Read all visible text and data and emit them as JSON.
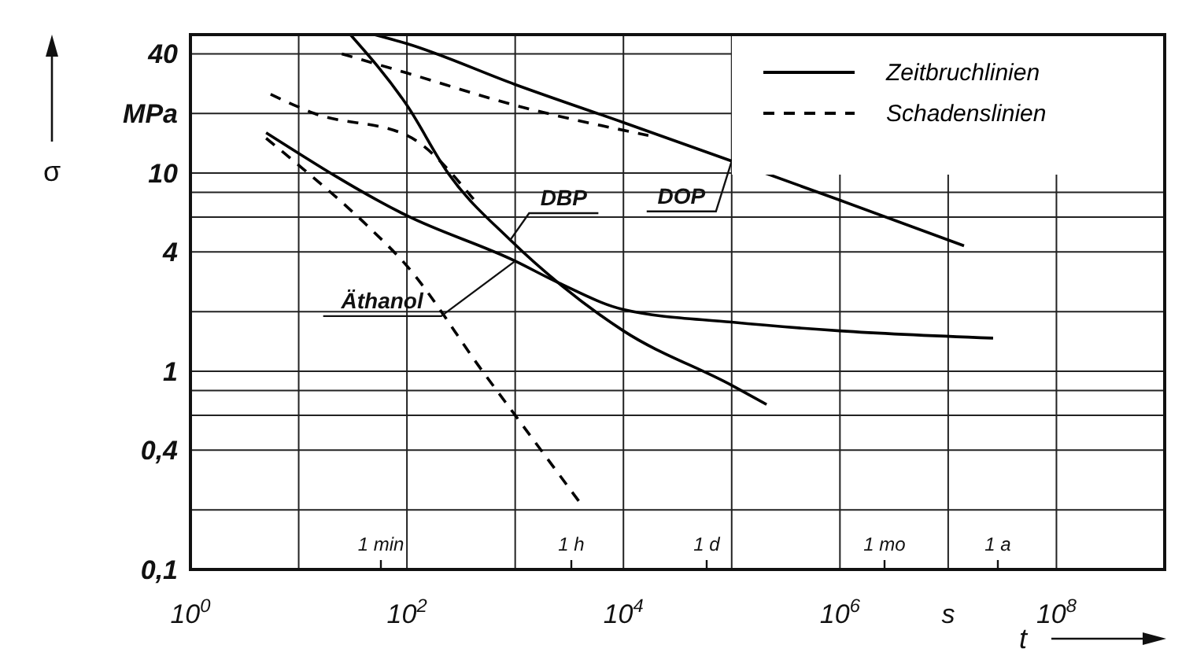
{
  "chart_data": {
    "type": "line",
    "xlabel": "t",
    "ylabel": "σ",
    "xlim": [
      1,
      1000000000
    ],
    "ylim": [
      0.1,
      50
    ],
    "log": "xy",
    "xticks": [
      {
        "value": 1,
        "label": "10$^{0}$"
      },
      {
        "value": 10,
        "label": null
      },
      {
        "value": 100,
        "label": "10$^{2}$"
      },
      {
        "value": 1000,
        "label": null
      },
      {
        "value": 10000,
        "label": "10$^{4}$"
      },
      {
        "value": 100000,
        "label": null
      },
      {
        "value": 1000000,
        "label": "10$^{6}$"
      },
      {
        "value": 10000000,
        "label": "s"
      },
      {
        "value": 100000000,
        "label": "10$^{8}$"
      },
      {
        "value": 1000000000,
        "label": null
      }
    ],
    "yticks": [
      {
        "value": 0.1,
        "label": "0,1"
      },
      {
        "value": 0.2,
        "label": null
      },
      {
        "value": 0.4,
        "label": "0,4"
      },
      {
        "value": 0.6,
        "label": null
      },
      {
        "value": 0.8,
        "label": null
      },
      1,
      {
        "value": 2,
        "label": null
      },
      4,
      {
        "value": 6,
        "label": null
      },
      {
        "value": 8,
        "label": null
      },
      10,
      {
        "value": 20,
        "label": "MPa"
      },
      40
    ],
    "grid": true,
    "legend": "top right",
    "series": [
      {
        "name": "Zeitbruchlinien",
        "color": "#000000",
        "line_style": "solid",
        "x": [
          50,
          100,
          1000,
          10000,
          100000,
          1000000,
          14000000
        ],
        "values": [
          50,
          45,
          28,
          18,
          11.5,
          7.3,
          4.3
        ]
      },
      {
        "name": "Schadenslinien",
        "color": "#000000",
        "line_style": "dashed",
        "x": [
          25,
          100,
          1000,
          17000
        ],
        "values": [
          40,
          32,
          22,
          15.5
        ]
      },
      {
        "color": "#000000",
        "line_style": "solid",
        "x": [
          30,
          100,
          240,
          900,
          2700,
          10000,
          100000,
          210000
        ],
        "values": [
          50,
          22,
          10,
          4.6,
          2.7,
          1.6,
          0.85,
          0.68
        ]
      },
      {
        "color": "#000000",
        "line_style": "dashed",
        "x": [
          5.5,
          14,
          100,
          420
        ],
        "values": [
          25,
          20,
          15.5,
          7.3
        ]
      },
      {
        "color": "#000000",
        "line_style": "solid",
        "x": [
          5,
          100,
          1000,
          2500,
          10000,
          100000,
          1000000,
          26000000
        ],
        "values": [
          16,
          6.1,
          3.6,
          2.8,
          2.05,
          1.77,
          1.6,
          1.47
        ]
      },
      {
        "color": "#000000",
        "line_style": "dashed",
        "x": [
          5,
          11,
          42,
          100,
          500,
          1000,
          3900
        ],
        "values": [
          15,
          10.5,
          5.5,
          3.4,
          1,
          0.6,
          0.22
        ]
      }
    ],
    "annotations": [
      "1 min",
      "1 h",
      "1 d",
      "1 mo",
      "1 a",
      {
        "text": "DOP",
        "x": 100000,
        "y": 11.5
      },
      {
        "text": "DBP",
        "x": 900,
        "y": 4.6
      },
      {
        "text": "Äthanol",
        "x": 1000,
        "y": 3.6
      }
    ]
  }
}
